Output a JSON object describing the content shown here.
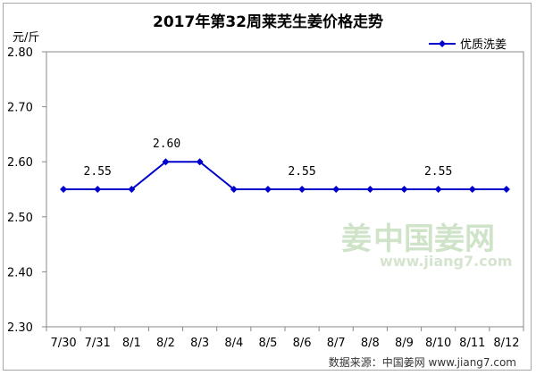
{
  "chart_data": {
    "type": "line",
    "title": "2017年第32周莱芜生姜价格走势",
    "ylabel": "元/斤",
    "xlabel": "",
    "ylim": [
      2.3,
      2.8
    ],
    "yticks": [
      "2.30",
      "2.40",
      "2.50",
      "2.60",
      "2.70",
      "2.80"
    ],
    "categories": [
      "7/30",
      "7/31",
      "8/1",
      "8/2",
      "8/3",
      "8/4",
      "8/5",
      "8/6",
      "8/7",
      "8/8",
      "8/9",
      "8/10",
      "8/11",
      "8/12"
    ],
    "series": [
      {
        "name": "优质洗姜",
        "color": "#0000cc",
        "values": [
          2.55,
          2.55,
          2.55,
          2.6,
          2.6,
          2.55,
          2.55,
          2.55,
          2.55,
          2.55,
          2.55,
          2.55,
          2.55,
          2.55
        ]
      }
    ],
    "annotations": [
      {
        "index": 1,
        "text": "2.55"
      },
      {
        "index": 3,
        "text": "2.60"
      },
      {
        "index": 7,
        "text": "2.55"
      },
      {
        "index": 11,
        "text": "2.55"
      }
    ],
    "legend": "top-right",
    "grid": false
  },
  "watermark": {
    "logo_char": "姜",
    "site_name": "中国姜网",
    "url": "www.jiang7.com"
  },
  "source_text": "数据来源：中国姜网 www.jiang7.com"
}
